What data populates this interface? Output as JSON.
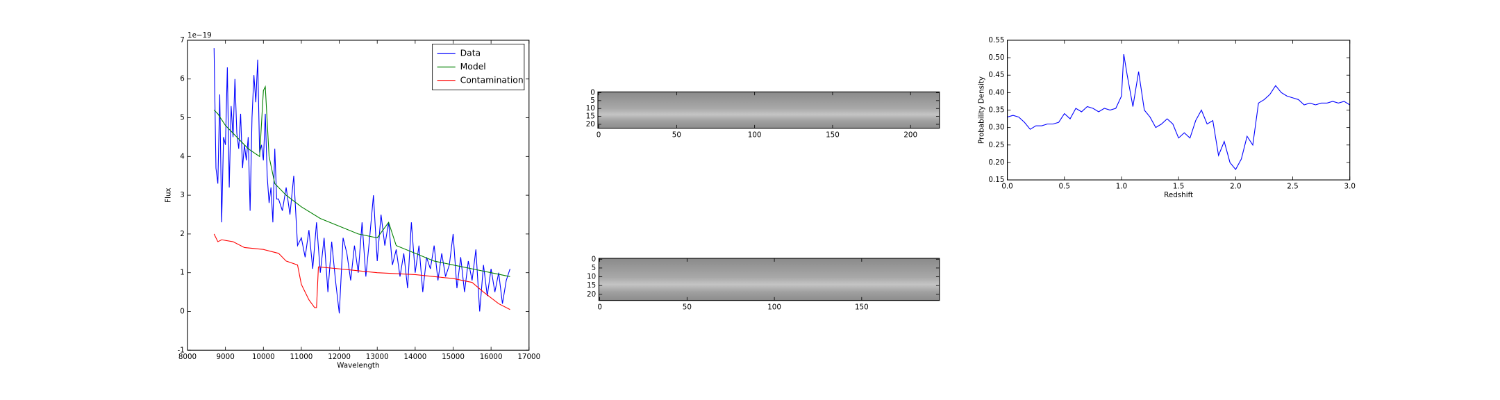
{
  "chart_data": [
    {
      "type": "line",
      "xlabel": "Wavelength",
      "ylabel": "Flux",
      "offset_label": "1e−19",
      "xlim": [
        8000,
        17000
      ],
      "xticks": [
        8000,
        9000,
        10000,
        11000,
        12000,
        13000,
        14000,
        15000,
        16000,
        17000
      ],
      "ylim": [
        -1,
        7
      ],
      "yticks": [
        -1,
        0,
        1,
        2,
        3,
        4,
        5,
        6,
        7
      ],
      "legend": "upper right",
      "series": [
        {
          "name": "Data",
          "color": "#0000ff",
          "x": [
            8700,
            8750,
            8800,
            8850,
            8900,
            8950,
            9000,
            9050,
            9100,
            9150,
            9200,
            9250,
            9300,
            9350,
            9400,
            9450,
            9500,
            9550,
            9600,
            9650,
            9700,
            9750,
            9800,
            9850,
            9900,
            9950,
            10000,
            10050,
            10100,
            10150,
            10200,
            10250,
            10300,
            10350,
            10400,
            10500,
            10600,
            10700,
            10800,
            10900,
            11000,
            11100,
            11200,
            11300,
            11400,
            11500,
            11600,
            11700,
            11800,
            11900,
            12000,
            12100,
            12200,
            12300,
            12400,
            12500,
            12600,
            12700,
            12800,
            12900,
            13000,
            13100,
            13200,
            13300,
            13400,
            13500,
            13600,
            13700,
            13800,
            13900,
            14000,
            14100,
            14200,
            14300,
            14400,
            14500,
            14600,
            14700,
            14800,
            14900,
            15000,
            15100,
            15200,
            15300,
            15400,
            15500,
            15600,
            15700,
            15800,
            15900,
            16000,
            16100,
            16200,
            16300,
            16400,
            16500
          ],
          "values": [
            6.8,
            3.7,
            3.3,
            5.6,
            2.3,
            4.5,
            4.3,
            6.3,
            3.2,
            5.3,
            4.5,
            6.0,
            4.6,
            4.2,
            5.1,
            3.7,
            4.3,
            3.9,
            4.5,
            2.6,
            5.0,
            6.1,
            5.4,
            6.5,
            4.1,
            4.3,
            3.9,
            5.1,
            3.5,
            2.8,
            3.2,
            2.3,
            4.2,
            2.9,
            2.9,
            2.6,
            3.2,
            2.5,
            3.5,
            1.7,
            1.9,
            1.4,
            2.1,
            1.1,
            2.3,
            1.0,
            1.9,
            0.5,
            1.8,
            0.8,
            -0.05,
            1.9,
            1.5,
            0.8,
            1.7,
            1.0,
            2.3,
            0.9,
            1.9,
            3.0,
            1.3,
            2.5,
            1.7,
            2.3,
            1.2,
            1.6,
            0.9,
            1.5,
            0.6,
            2.3,
            1.0,
            1.7,
            0.5,
            1.4,
            1.1,
            1.7,
            0.8,
            1.5,
            0.9,
            1.2,
            2.0,
            0.6,
            1.4,
            0.5,
            1.3,
            0.8,
            1.6,
            0.0,
            1.2,
            0.4,
            1.1,
            0.5,
            1.0,
            0.2,
            0.8,
            1.1
          ]
        },
        {
          "name": "Model",
          "color": "#008000",
          "x": [
            8700,
            8800,
            9000,
            9300,
            9600,
            9900,
            10000,
            10050,
            10150,
            10300,
            10600,
            11000,
            11500,
            12000,
            12500,
            13000,
            13300,
            13500,
            14000,
            14500,
            15000,
            15500,
            16000,
            16500
          ],
          "values": [
            5.2,
            5.1,
            4.8,
            4.5,
            4.2,
            4.0,
            5.7,
            5.8,
            4.0,
            3.3,
            3.0,
            2.7,
            2.4,
            2.2,
            2.0,
            1.9,
            2.3,
            1.7,
            1.5,
            1.3,
            1.2,
            1.1,
            1.0,
            0.9
          ]
        },
        {
          "name": "Contamination",
          "color": "#ff0000",
          "x": [
            8700,
            8800,
            8900,
            9200,
            9500,
            10000,
            10400,
            10600,
            10900,
            11000,
            11200,
            11350,
            11400,
            11450,
            12000,
            12500,
            13000,
            14000,
            14500,
            15000,
            15500,
            15800,
            16200,
            16500
          ],
          "values": [
            2.0,
            1.8,
            1.85,
            1.8,
            1.65,
            1.6,
            1.5,
            1.3,
            1.2,
            0.7,
            0.3,
            0.1,
            0.1,
            1.15,
            1.1,
            1.05,
            1.0,
            0.95,
            0.9,
            0.85,
            0.75,
            0.5,
            0.2,
            0.05
          ]
        }
      ]
    },
    {
      "type": "image",
      "xlim": [
        -0.5,
        218.5
      ],
      "xticks": [
        0,
        50,
        100,
        150,
        200
      ],
      "ylim": [
        22.5,
        -0.5
      ],
      "yticks": [
        0,
        5,
        10,
        15,
        20
      ]
    },
    {
      "type": "image",
      "xlim": [
        -0.5,
        194.5
      ],
      "xticks": [
        0,
        50,
        100,
        150
      ],
      "ylim": [
        23.5,
        -0.5
      ],
      "yticks": [
        0,
        5,
        10,
        15,
        20
      ]
    },
    {
      "type": "line",
      "xlabel": "Redshift",
      "ylabel": "Probability Density",
      "xlim": [
        0,
        3
      ],
      "xticks": [
        {
          "value": 0,
          "label": "0.0"
        },
        0.5,
        {
          "value": 1,
          "label": "1.0"
        },
        1.5,
        {
          "value": 2,
          "label": "2.0"
        },
        2.5,
        {
          "value": 3,
          "label": "3.0"
        }
      ],
      "ylim": [
        0.15,
        0.55
      ],
      "yticks": [
        0.15,
        {
          "value": 0.2,
          "label": "0.20"
        },
        0.25,
        {
          "value": 0.3,
          "label": "0.30"
        },
        0.35,
        {
          "value": 0.4,
          "label": "0.40"
        },
        0.45,
        {
          "value": 0.5,
          "label": "0.50"
        },
        0.55
      ],
      "series": [
        {
          "color": "#0000ff",
          "x": [
            0,
            0.05,
            0.1,
            0.15,
            0.2,
            0.25,
            0.3,
            0.35,
            0.4,
            0.45,
            0.5,
            0.55,
            0.6,
            0.65,
            0.7,
            0.75,
            0.8,
            0.85,
            0.9,
            0.95,
            1.0,
            1.02,
            1.05,
            1.1,
            1.15,
            1.2,
            1.25,
            1.3,
            1.35,
            1.4,
            1.45,
            1.5,
            1.55,
            1.6,
            1.65,
            1.7,
            1.75,
            1.8,
            1.85,
            1.9,
            1.95,
            2.0,
            2.05,
            2.1,
            2.15,
            2.2,
            2.25,
            2.3,
            2.35,
            2.4,
            2.45,
            2.5,
            2.55,
            2.6,
            2.65,
            2.7,
            2.75,
            2.8,
            2.85,
            2.9,
            2.95,
            3.0
          ],
          "values": [
            0.33,
            0.335,
            0.33,
            0.315,
            0.295,
            0.305,
            0.305,
            0.31,
            0.31,
            0.315,
            0.34,
            0.325,
            0.355,
            0.345,
            0.36,
            0.355,
            0.345,
            0.355,
            0.35,
            0.355,
            0.39,
            0.51,
            0.45,
            0.36,
            0.46,
            0.35,
            0.33,
            0.3,
            0.31,
            0.325,
            0.31,
            0.27,
            0.285,
            0.27,
            0.32,
            0.35,
            0.31,
            0.32,
            0.22,
            0.26,
            0.2,
            0.18,
            0.21,
            0.275,
            0.25,
            0.37,
            0.38,
            0.395,
            0.42,
            0.4,
            0.39,
            0.385,
            0.38,
            0.365,
            0.37,
            0.365,
            0.37,
            0.37,
            0.375,
            0.37,
            0.375,
            0.365
          ]
        }
      ]
    }
  ]
}
